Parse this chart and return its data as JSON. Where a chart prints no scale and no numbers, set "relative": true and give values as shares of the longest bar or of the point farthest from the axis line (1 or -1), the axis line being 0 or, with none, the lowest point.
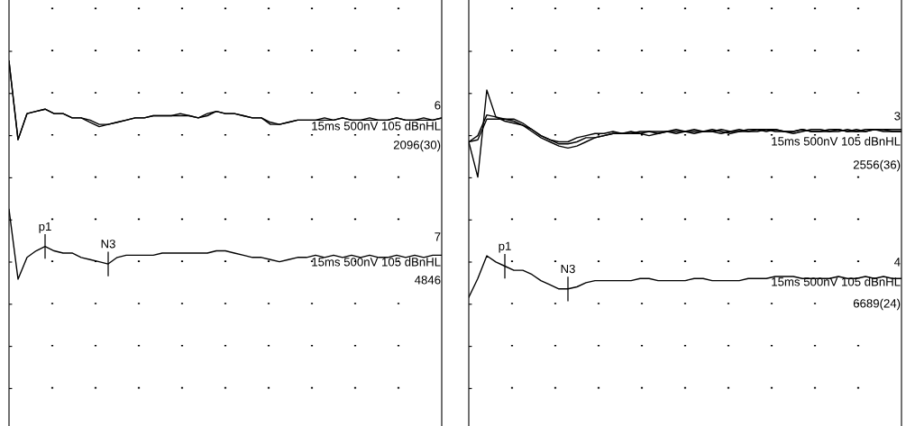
{
  "chart_data": [
    {
      "type": "line",
      "relative": true,
      "grid": "x",
      "marker": "none",
      "line_style": "solid",
      "categories": [
        null,
        null,
        null,
        null,
        null,
        null,
        null,
        null,
        null,
        null,
        null,
        null,
        null,
        null,
        null,
        null,
        null,
        null,
        null,
        null,
        null,
        null,
        null,
        null,
        null,
        null,
        null,
        null,
        null,
        null,
        null,
        null,
        null,
        null,
        null,
        null,
        null,
        null,
        null,
        null,
        null,
        null,
        null,
        null,
        null,
        null,
        null,
        null,
        null
      ],
      "series": [
        {
          "color": "#000000",
          "values": [
            1.0,
            0.64,
            0.76,
            0.77,
            0.78,
            0.76,
            0.76,
            0.74,
            0.74,
            0.73,
            0.71,
            0.71,
            0.72,
            0.73,
            0.74,
            0.74,
            0.75,
            0.75,
            0.75,
            0.76,
            0.75,
            0.74,
            0.76,
            0.77,
            0.76,
            0.76,
            0.75,
            0.74,
            0.74,
            0.72,
            0.71,
            0.72,
            0.73,
            0.73,
            0.73,
            0.74,
            0.73,
            0.74,
            0.73,
            0.73,
            0.74,
            0.73,
            0.73,
            0.74,
            0.73,
            0.73,
            0.74,
            0.73,
            0.74
          ]
        },
        {
          "color": "#000000",
          "values": [
            1.0,
            0.64,
            0.76,
            0.77,
            0.78,
            0.76,
            0.76,
            0.74,
            0.74,
            0.72,
            0.7,
            0.71,
            0.72,
            0.73,
            0.74,
            0.74,
            0.75,
            0.75,
            0.75,
            0.75,
            0.75,
            0.74,
            0.75,
            0.77,
            0.76,
            0.76,
            0.75,
            0.74,
            0.74,
            0.71,
            0.71,
            0.72,
            0.73,
            0.73,
            0.73,
            0.73,
            0.73,
            0.74,
            0.73,
            0.73,
            0.73,
            0.73,
            0.73,
            0.74,
            0.73,
            0.73,
            0.73,
            0.73,
            0.74
          ]
        },
        {
          "color": "#000000",
          "values": [
            0.32,
            0.0,
            0.1,
            0.13,
            0.15,
            0.13,
            0.12,
            0.12,
            0.1,
            0.09,
            0.08,
            0.07,
            0.1,
            0.11,
            0.11,
            0.11,
            0.11,
            0.12,
            0.12,
            0.12,
            0.12,
            0.12,
            0.12,
            0.13,
            0.13,
            0.12,
            0.11,
            0.1,
            0.1,
            0.09,
            0.08,
            0.09,
            0.1,
            0.1,
            0.11,
            0.1,
            0.11,
            0.1,
            0.11,
            0.1,
            0.11,
            0.1,
            0.1,
            0.11,
            0.1,
            0.11,
            0.1,
            0.11,
            0.11
          ]
        }
      ],
      "annotations": [
        "6",
        "15ms 500nV 105 dBnHL",
        "2096(30)",
        "p1",
        "N3",
        "7",
        "15ms 500nV 105 dBnHL",
        "4846"
      ]
    },
    {
      "type": "line",
      "relative": true,
      "grid": "x",
      "marker": "none",
      "line_style": "solid",
      "categories": [
        null,
        null,
        null,
        null,
        null,
        null,
        null,
        null,
        null,
        null,
        null,
        null,
        null,
        null,
        null,
        null,
        null,
        null,
        null,
        null,
        null,
        null,
        null,
        null,
        null,
        null,
        null,
        null,
        null,
        null,
        null,
        null,
        null,
        null,
        null,
        null,
        null,
        null,
        null,
        null,
        null,
        null,
        null,
        null,
        null,
        null,
        null,
        null,
        null
      ],
      "series": [
        {
          "color": "#000000",
          "values": [
            0.75,
            0.58,
            1.0,
            0.87,
            0.85,
            0.84,
            0.83,
            0.8,
            0.77,
            0.75,
            0.73,
            0.72,
            0.73,
            0.75,
            0.77,
            0.78,
            0.79,
            0.79,
            0.79,
            0.79,
            0.8,
            0.8,
            0.8,
            0.79,
            0.8,
            0.81,
            0.8,
            0.8,
            0.79,
            0.8,
            0.81,
            0.8,
            0.8,
            0.81,
            0.81,
            0.8,
            0.8,
            0.81,
            0.8,
            0.8,
            0.81,
            0.81,
            0.8,
            0.81,
            0.8,
            0.81,
            0.8,
            0.8,
            0.8
          ]
        },
        {
          "color": "#000000",
          "values": [
            0.75,
            0.78,
            0.88,
            0.87,
            0.86,
            0.86,
            0.84,
            0.81,
            0.78,
            0.76,
            0.75,
            0.75,
            0.77,
            0.78,
            0.79,
            0.79,
            0.8,
            0.79,
            0.8,
            0.79,
            0.78,
            0.79,
            0.8,
            0.81,
            0.8,
            0.79,
            0.8,
            0.81,
            0.8,
            0.79,
            0.8,
            0.81,
            0.81,
            0.8,
            0.81,
            0.8,
            0.79,
            0.8,
            0.81,
            0.81,
            0.8,
            0.8,
            0.81,
            0.8,
            0.8,
            0.81,
            0.81,
            0.8,
            0.8
          ]
        },
        {
          "color": "#000000",
          "values": [
            0.75,
            0.76,
            0.86,
            0.86,
            0.86,
            0.85,
            0.83,
            0.81,
            0.78,
            0.76,
            0.74,
            0.74,
            0.75,
            0.77,
            0.77,
            0.78,
            0.79,
            0.79,
            0.79,
            0.8,
            0.8,
            0.79,
            0.8,
            0.8,
            0.8,
            0.8,
            0.8,
            0.8,
            0.81,
            0.8,
            0.8,
            0.8,
            0.81,
            0.81,
            0.8,
            0.8,
            0.8,
            0.81,
            0.8,
            0.8,
            0.8,
            0.81,
            0.8,
            0.8,
            0.81,
            0.81,
            0.81,
            0.81,
            0.81
          ]
        },
        {
          "color": "#000000",
          "values": [
            0.0,
            0.09,
            0.2,
            0.17,
            0.15,
            0.13,
            0.13,
            0.11,
            0.08,
            0.06,
            0.04,
            0.04,
            0.05,
            0.07,
            0.08,
            0.08,
            0.08,
            0.08,
            0.08,
            0.09,
            0.09,
            0.08,
            0.08,
            0.08,
            0.08,
            0.09,
            0.09,
            0.08,
            0.08,
            0.08,
            0.08,
            0.09,
            0.09,
            0.09,
            0.1,
            0.1,
            0.1,
            0.09,
            0.09,
            0.09,
            0.09,
            0.1,
            0.09,
            0.09,
            0.1,
            0.09,
            0.1,
            0.09,
            0.09
          ]
        }
      ],
      "annotations": [
        "3",
        "15ms 500nV 105 dBnHL",
        "2556(36)",
        "p1",
        "N3",
        "4",
        "15ms 500nV 105 dBnHL",
        "6689(24)"
      ]
    }
  ]
}
